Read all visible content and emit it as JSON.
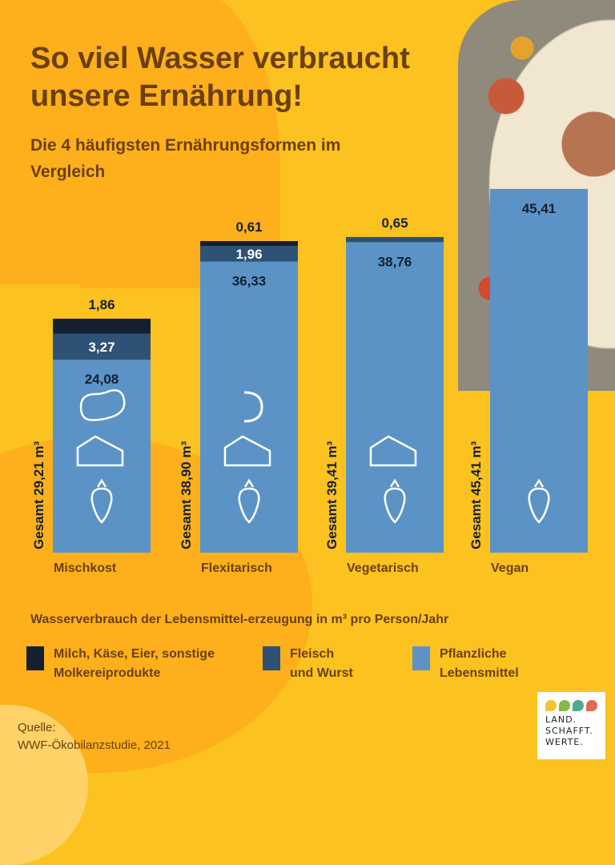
{
  "header": {
    "title": "So viel Wasser verbraucht unsere Ernährung!",
    "subtitle": "Die 4 häufigsten Ernährungsformen im Vergleich"
  },
  "colors": {
    "background": "#fcc21f",
    "dairy": "#13202f",
    "meat": "#2e5275",
    "plant": "#5b93c7",
    "text": "#6b3f10"
  },
  "chart_data": {
    "type": "bar",
    "stacked": true,
    "title": "So viel Wasser verbraucht unsere Ernährung!",
    "subtitle": "Die 4 häufigsten Ernährungsformen im Vergleich",
    "xlabel": "",
    "ylabel": "Wasserverbrauch der Lebensmittel-erzeugung in m³ pro Person/Jahr",
    "categories": [
      "Mischkost",
      "Flexitarisch",
      "Vegetarisch",
      "Vegan"
    ],
    "series": [
      {
        "name": "Pflanzliche Lebensmittel",
        "values": [
          24.08,
          36.33,
          38.76,
          45.41
        ],
        "labels": [
          "24,08",
          "36,33",
          "38,76",
          "45,41"
        ]
      },
      {
        "name": "Fleisch und Wurst",
        "values": [
          3.27,
          1.96,
          0.65,
          0
        ],
        "labels": [
          "3,27",
          "1,96",
          "0,65",
          ""
        ]
      },
      {
        "name": "Milch, Käse, Eier, sonstige Molkereiprodukte",
        "values": [
          1.86,
          0.61,
          0,
          0
        ],
        "labels": [
          "1,86",
          "0,61",
          "",
          ""
        ]
      }
    ],
    "totals": [
      "Gesamt 29,21 m³",
      "Gesamt 38,90 m³",
      "Gesamt 39,41 m³",
      "Gesamt 45,41 m³"
    ],
    "icons": [
      [
        "steak-icon",
        "cheese-icon",
        "carrot-icon"
      ],
      [
        "sausage-icon",
        "cheese-icon",
        "carrot-icon"
      ],
      [
        "cheese-icon",
        "carrot-icon"
      ],
      [
        "carrot-icon"
      ]
    ],
    "ylim": [
      0,
      46
    ],
    "grid": false,
    "legend": "bottom"
  },
  "legend": {
    "title": "Wasserverbrauch der Lebensmittel-erzeugung in m³ pro Person/Jahr",
    "items": [
      {
        "label": "Milch, Käse, Eier, sonstige\nMolkereiprodukte",
        "color": "#13202f"
      },
      {
        "label": "Fleisch\nund Wurst",
        "color": "#2e5275"
      },
      {
        "label": "Pflanzliche\nLebensmittel",
        "color": "#5b93c7"
      }
    ]
  },
  "source": {
    "label": "Quelle:",
    "text": "WWF-Ökobilanzstudie, 2021"
  },
  "logo": {
    "lines": [
      "LAND.",
      "SCHAFFT.",
      "WERTE."
    ],
    "dot_colors": [
      "#f3c534",
      "#86b84a",
      "#4fa88f",
      "#e06a55"
    ]
  }
}
